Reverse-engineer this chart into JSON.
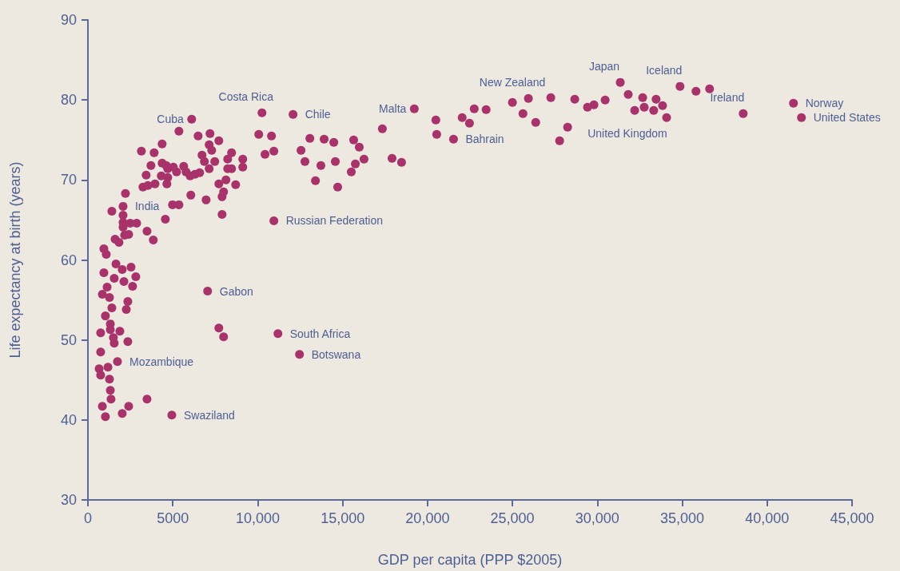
{
  "chart_data": {
    "type": "scatter",
    "xlabel": "GDP per capita (PPP $2005)",
    "ylabel": "Life expectancy at birth (years)",
    "xlim": [
      0,
      45000
    ],
    "xticks": [
      0,
      5000,
      {
        "value": 10000,
        "label": "10,000"
      },
      {
        "value": 15000,
        "label": "15,000"
      },
      {
        "value": 20000,
        "label": "20,000"
      },
      {
        "value": 25000,
        "label": "25,000"
      },
      {
        "value": 30000,
        "label": "30,000"
      },
      {
        "value": 35000,
        "label": "35,000"
      },
      {
        "value": 40000,
        "label": "40,000"
      },
      {
        "value": 45000,
        "label": "45,000"
      }
    ],
    "ylim": [
      30,
      90
    ],
    "yticks": [
      30,
      40,
      50,
      60,
      70,
      80,
      90
    ],
    "grid": false,
    "marker": "circle",
    "series": [
      {
        "color": "#a8336b",
        "x": [
          19220,
          20490,
          20540,
          21530,
          22040,
          22470,
          22750,
          23450,
          25000,
          25620,
          25940,
          26370,
          27260,
          27780,
          28250,
          28670,
          29420,
          29800,
          30460,
          31350,
          31820,
          32200,
          32670,
          32760,
          33320,
          33460,
          33840,
          34080,
          34870,
          35810,
          36610,
          38590,
          41550,
          42020,
          10250,
          12080,
          10060,
          10810,
          10430,
          10950,
          13070,
          13910,
          14480,
          12550,
          12780,
          13720,
          14570,
          13400,
          14710,
          15650,
          15980,
          16260,
          15750,
          15510,
          17340,
          17910,
          18470,
          10950,
          9120,
          9120,
          6110,
          5360,
          6490,
          7190,
          7710,
          7140,
          7290,
          4370,
          3150,
          3900,
          6720,
          8460,
          8230,
          6860,
          7470,
          3710,
          4370,
          4610,
          5030,
          5640,
          5220,
          5780,
          6020,
          6300,
          6580,
          7140,
          8230,
          8460,
          3430,
          4320,
          4700,
          4700,
          3240,
          3530,
          3950,
          4650,
          8130,
          7710,
          8700,
          7990,
          7900,
          6060,
          6960,
          2210,
          2070,
          1410,
          4980,
          5360,
          2070,
          2070,
          2870,
          2490,
          4560,
          7900,
          2070,
          3480,
          3850,
          2160,
          2400,
          1600,
          1830,
          940,
          1080,
          1650,
          2020,
          2540,
          940,
          1550,
          2120,
          2820,
          2630,
          1130,
          850,
          1270,
          2350,
          2260,
          1410,
          1030,
          1320,
          1320,
          1880,
          750,
          1500,
          1550,
          2350,
          750,
          1740,
          660,
          750,
          1180,
          1270,
          1320,
          1360,
          850,
          1030,
          2020,
          2400,
          3480,
          4940,
          7050,
          7710,
          7990,
          11190,
          12460
        ],
        "values": [
          78.9,
          77.5,
          75.7,
          75.1,
          77.8,
          77.1,
          78.9,
          78.8,
          79.7,
          78.3,
          80.2,
          77.2,
          80.3,
          74.9,
          76.6,
          80.1,
          79.1,
          79.4,
          80.0,
          82.2,
          80.7,
          78.7,
          80.3,
          79.1,
          78.7,
          80.1,
          79.3,
          77.8,
          81.7,
          81.1,
          81.4,
          78.3,
          79.6,
          77.8,
          78.4,
          78.2,
          75.7,
          75.5,
          73.2,
          73.6,
          75.2,
          75.1,
          74.7,
          73.7,
          72.3,
          71.8,
          72.3,
          69.9,
          69.1,
          75.0,
          74.1,
          72.6,
          72.0,
          71.0,
          76.4,
          72.7,
          72.2,
          64.9,
          72.6,
          71.6,
          77.6,
          76.1,
          75.5,
          75.8,
          74.9,
          74.4,
          73.7,
          74.5,
          73.6,
          73.4,
          73.1,
          73.4,
          72.6,
          72.3,
          72.3,
          71.8,
          72.1,
          71.8,
          71.6,
          71.7,
          71.0,
          71.0,
          70.5,
          70.7,
          70.9,
          71.4,
          71.4,
          71.4,
          70.6,
          70.5,
          70.3,
          71.4,
          69.1,
          69.3,
          69.5,
          69.5,
          70.0,
          69.5,
          69.4,
          68.5,
          67.9,
          68.1,
          67.5,
          68.3,
          66.7,
          66.1,
          66.9,
          66.9,
          65.6,
          64.7,
          64.6,
          64.6,
          65.1,
          65.7,
          64.1,
          63.6,
          62.5,
          63.1,
          63.2,
          62.6,
          62.2,
          61.4,
          60.7,
          59.5,
          58.8,
          59.1,
          58.4,
          57.7,
          57.3,
          57.9,
          56.7,
          56.6,
          55.7,
          55.3,
          54.8,
          53.8,
          54.0,
          53.0,
          52.0,
          51.3,
          51.1,
          50.9,
          50.3,
          49.6,
          49.8,
          48.5,
          47.3,
          46.4,
          45.6,
          46.6,
          45.1,
          43.7,
          42.6,
          41.7,
          40.4,
          40.8,
          41.7,
          42.6,
          40.6,
          56.1,
          51.5,
          50.4,
          50.8,
          48.2
        ]
      }
    ],
    "annotations": [
      {
        "text": "Cuba",
        "x": 6110,
        "y": 77.6
      },
      {
        "text": "Costa Rica",
        "x": 10250,
        "y": 78.4
      },
      {
        "text": "Chile",
        "x": 12080,
        "y": 78.2
      },
      {
        "text": "Malta",
        "x": 19220,
        "y": 78.9
      },
      {
        "text": "New Zealand",
        "x": 25940,
        "y": 80.2
      },
      {
        "text": "Japan",
        "x": 31350,
        "y": 82.2
      },
      {
        "text": "Iceland",
        "x": 34870,
        "y": 81.7
      },
      {
        "text": "Ireland",
        "x": 38590,
        "y": 78.3
      },
      {
        "text": "Norway",
        "x": 41550,
        "y": 79.6
      },
      {
        "text": "United States",
        "x": 42020,
        "y": 77.8
      },
      {
        "text": "United Kingdom",
        "x": 28250,
        "y": 76.6
      },
      {
        "text": "Bahrain",
        "x": 21530,
        "y": 75.1
      },
      {
        "text": "Russian Federation",
        "x": 10950,
        "y": 64.9
      },
      {
        "text": "India",
        "x": 2070,
        "y": 66.7
      },
      {
        "text": "Gabon",
        "x": 7050,
        "y": 56.1
      },
      {
        "text": "South Africa",
        "x": 11190,
        "y": 50.8
      },
      {
        "text": "Botswana",
        "x": 12460,
        "y": 48.2
      },
      {
        "text": "Mozambique",
        "x": 1740,
        "y": 47.3
      },
      {
        "text": "Swaziland",
        "x": 4940,
        "y": 40.6
      }
    ]
  }
}
